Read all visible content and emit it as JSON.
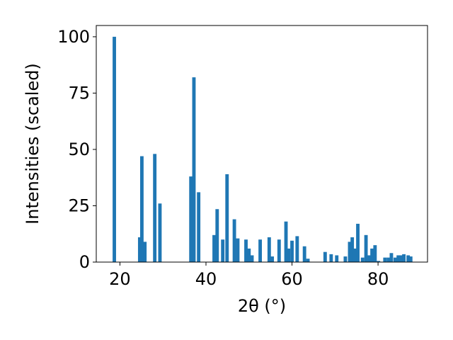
{
  "chart_data": {
    "type": "bar",
    "xlabel": "2θ (°)",
    "ylabel": "Intensities (scaled)",
    "xlim": [
      14.5,
      91.5
    ],
    "ylim": [
      0,
      105
    ],
    "xticks": [
      20,
      40,
      60,
      80
    ],
    "yticks": [
      0,
      25,
      50,
      75,
      100
    ],
    "bar_width": 0.8,
    "bar_color": "#1f77b4",
    "x": [
      18.7,
      24.6,
      25.1,
      25.8,
      28.1,
      29.3,
      36.5,
      37.2,
      38.3,
      41.9,
      42.6,
      43.9,
      44.9,
      46.6,
      47.4,
      49.3,
      50.0,
      50.7,
      52.6,
      54.7,
      55.4,
      57.0,
      58.6,
      59.2,
      60.0,
      61.2,
      62.9,
      63.7,
      67.7,
      69.1,
      70.4,
      72.4,
      73.4,
      74.0,
      74.6,
      75.3,
      76.4,
      77.2,
      78.0,
      78.6,
      79.3,
      80.1,
      81.6,
      82.4,
      83.1,
      84.0,
      84.7,
      85.3,
      86.0,
      87.0,
      87.6
    ],
    "values": [
      100,
      11,
      47,
      9,
      48,
      26,
      38,
      82,
      31,
      12,
      23.5,
      10,
      39,
      19,
      10.5,
      10,
      6,
      3,
      10,
      11,
      2.5,
      10,
      18,
      6,
      9.5,
      11.5,
      7,
      1.5,
      4.5,
      3.5,
      3,
      2.5,
      9,
      11,
      6,
      17,
      2,
      12,
      3,
      6,
      7.5,
      0.5,
      2,
      2,
      4,
      2,
      3,
      3,
      3.5,
      3,
      2.5
    ]
  }
}
